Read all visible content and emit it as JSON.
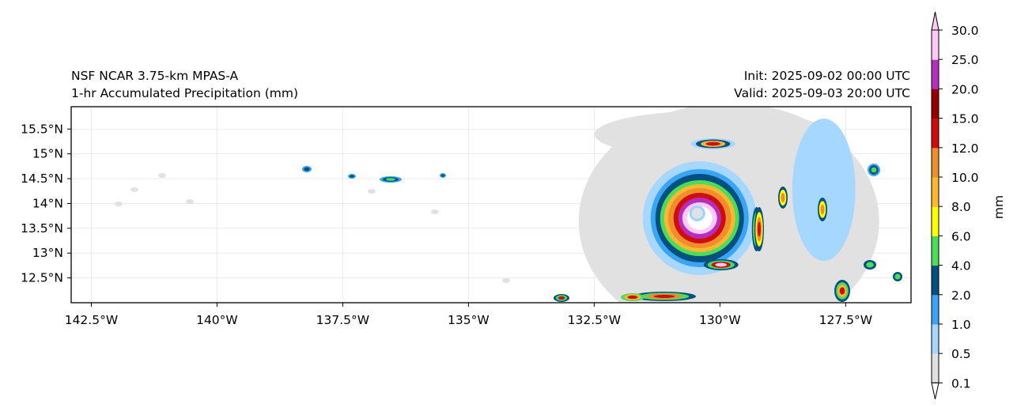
{
  "title": {
    "left_line1": "NSF NCAR 3.75-km MPAS-A",
    "left_line2": "1-hr Accumulated Precipitation (mm)",
    "right_line1": "Init: 2025-09-02 00:00 UTC",
    "right_line2": "Valid: 2025-09-03 20:00 UTC"
  },
  "map": {
    "lon_range": [
      -142.9,
      -126.2
    ],
    "lat_range": [
      12.0,
      15.95
    ],
    "lon_ticks": [
      {
        "value": -142.5,
        "label": "142.5°W"
      },
      {
        "value": -140.0,
        "label": "140°W"
      },
      {
        "value": -137.5,
        "label": "137.5°W"
      },
      {
        "value": -135.0,
        "label": "135°W"
      },
      {
        "value": -132.5,
        "label": "132.5°W"
      },
      {
        "value": -130.0,
        "label": "130°W"
      },
      {
        "value": -127.5,
        "label": "127.5°W"
      }
    ],
    "lat_ticks": [
      {
        "value": 15.5,
        "label": "15.5°N"
      },
      {
        "value": 15.0,
        "label": "15°N"
      },
      {
        "value": 14.5,
        "label": "14.5°N"
      },
      {
        "value": 14.0,
        "label": "14°N"
      },
      {
        "value": 13.5,
        "label": "13.5°N"
      },
      {
        "value": 13.0,
        "label": "13°N"
      },
      {
        "value": 12.5,
        "label": "12.5°N"
      }
    ],
    "storm_center": {
      "lon": -130.45,
      "lat": 13.8
    }
  },
  "colorbar": {
    "label": "mm",
    "extend": "both",
    "levels": [
      "0.1",
      "0.5",
      "1.0",
      "2.0",
      "4.0",
      "6.0",
      "8.0",
      "10.0",
      "12.0",
      "15.0",
      "20.0",
      "25.0",
      "30.0"
    ],
    "colors": [
      "#e1e1e1",
      "#a6d8ff",
      "#3aa5f5",
      "#04507f",
      "#4ddc59",
      "#ffff00",
      "#fbb731",
      "#ef8e2c",
      "#cf0d0d",
      "#980000",
      "#b52fbd",
      "#ffc9f5"
    ]
  }
}
